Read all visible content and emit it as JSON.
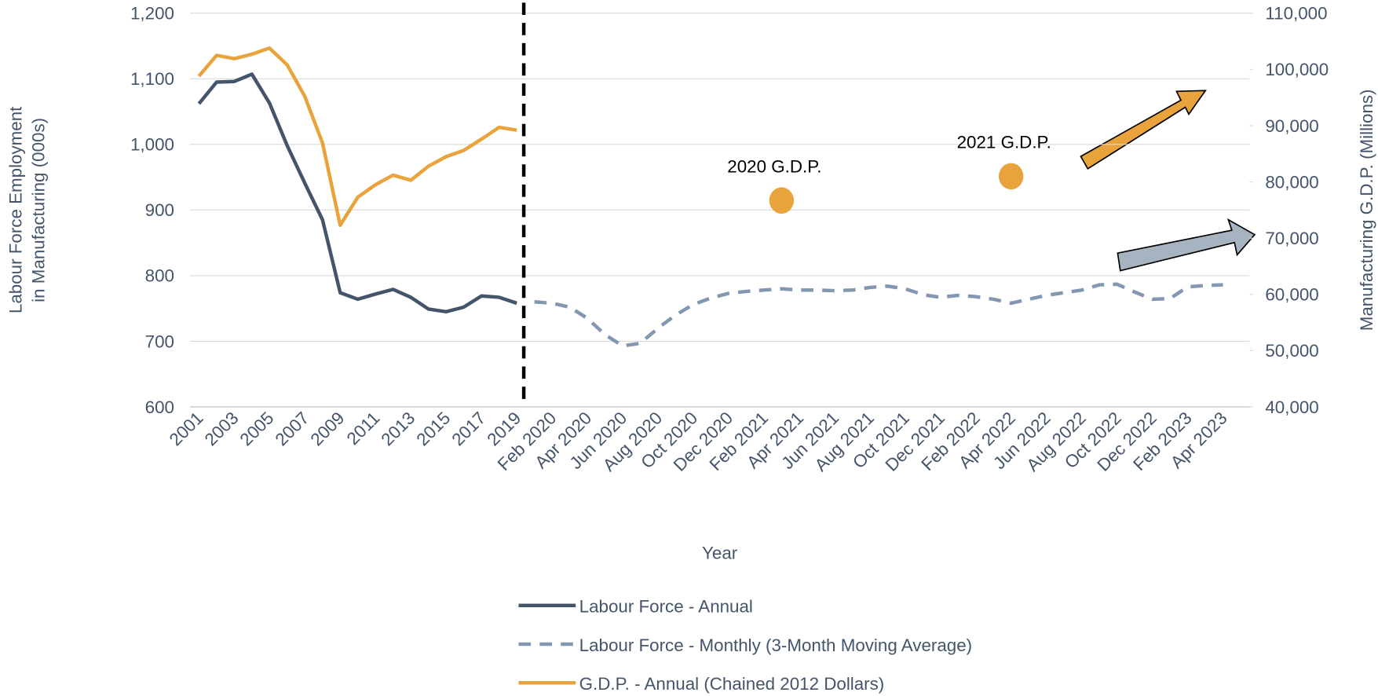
{
  "chart_data": {
    "type": "line",
    "x_label": "Year",
    "y_label": [
      "Labour Force Employment",
      "in Manufacturing (000s)"
    ],
    "y2_label": "Manufacturing G.D.P. (Millions)",
    "categories": [
      "2001",
      null,
      "2003",
      null,
      "2005",
      null,
      "2007",
      null,
      "2009",
      null,
      "2011",
      null,
      "2013",
      null,
      "2015",
      null,
      "2017",
      null,
      "2019",
      null,
      "Feb 2020",
      null,
      "Apr 2020",
      null,
      "Jun 2020",
      null,
      "Aug 2020",
      null,
      "Oct 2020",
      null,
      "Dec 2020",
      null,
      "Feb 2021",
      null,
      "Apr 2021",
      null,
      "Jun 2021",
      null,
      "Aug 2021",
      null,
      "Oct 2021",
      null,
      "Dec 2021",
      null,
      "Feb 2022",
      null,
      "Apr 2022",
      null,
      "Jun 2022",
      null,
      "Aug 2022",
      null,
      "Oct 2022",
      null,
      "Dec 2022",
      null,
      "Feb 2023",
      null,
      "Apr 2023"
    ],
    "ylim": [
      600,
      1200
    ],
    "yticks": [
      600,
      700,
      800,
      900,
      {
        "value": 1000,
        "label": "1,000"
      },
      {
        "value": 1100,
        "label": "1,100"
      },
      {
        "value": 1200,
        "label": "1,200"
      }
    ],
    "y2lim": [
      40000,
      110000
    ],
    "y2ticks": [
      {
        "value": 40000,
        "label": "40,000"
      },
      {
        "value": 50000,
        "label": "50,000"
      },
      {
        "value": 60000,
        "label": "60,000"
      },
      {
        "value": 70000,
        "label": "70,000"
      },
      {
        "value": 80000,
        "label": "80,000"
      },
      {
        "value": 90000,
        "label": "90,000"
      },
      {
        "value": 100000,
        "label": "100,000"
      },
      {
        "value": 110000,
        "label": "110,000"
      }
    ],
    "grid": true,
    "legend": "bottom",
    "series": [
      {
        "name": "Labour Force - Annual",
        "color": "#44546a",
        "style": "solid",
        "values": [
          1062,
          1095,
          1096,
          1107,
          1063,
          998,
          941,
          885,
          774,
          764,
          772,
          779,
          767,
          749,
          745,
          752,
          769,
          767,
          758,
          null,
          null,
          null,
          null,
          null,
          null,
          null,
          null,
          null,
          null,
          null,
          null,
          null,
          null,
          null,
          null,
          null,
          null,
          null,
          null,
          null,
          null,
          null,
          null,
          null,
          null,
          null,
          null,
          null,
          null,
          null,
          null,
          null,
          null,
          null,
          null,
          null,
          null,
          null,
          null
        ]
      },
      {
        "name": "Labour Force - Monthly (3-Month Moving Average)",
        "color": "#8497b0",
        "style": "dashed",
        "values": [
          null,
          null,
          null,
          null,
          null,
          null,
          null,
          null,
          null,
          null,
          null,
          null,
          null,
          null,
          null,
          null,
          null,
          null,
          null,
          760,
          758,
          752,
          735,
          710,
          693,
          697,
          720,
          740,
          756,
          766,
          773,
          776,
          778,
          780,
          778,
          778,
          777,
          778,
          782,
          784,
          780,
          771,
          767,
          770,
          768,
          764,
          758,
          764,
          770,
          774,
          778,
          786,
          787,
          775,
          764,
          765,
          783,
          785,
          786
        ]
      },
      {
        "name": "G.D.P. - Annual (Chained 2012 Dollars)",
        "color": "#e8a33d",
        "style": "solid",
        "axis": "y2",
        "values": [
          98800,
          102500,
          101900,
          102700,
          103800,
          100800,
          95200,
          86900,
          72300,
          77300,
          79500,
          81200,
          80300,
          82800,
          84500,
          85600,
          87600,
          89700,
          89200,
          null,
          null,
          null,
          null,
          null,
          null,
          null,
          null,
          null,
          null,
          null,
          null,
          null,
          null,
          null,
          null,
          null,
          null,
          null,
          null,
          null,
          null,
          null,
          null,
          null,
          null,
          null,
          null,
          null,
          null,
          null,
          null,
          null,
          null,
          null,
          null,
          null,
          null,
          null,
          null
        ]
      },
      {
        "color": "#e8a33d",
        "style": "dot",
        "axis": "y2",
        "values": [
          null,
          null,
          null,
          null,
          null,
          null,
          null,
          null,
          null,
          null,
          null,
          null,
          null,
          null,
          null,
          null,
          null,
          null,
          null,
          null,
          null,
          null,
          null,
          null,
          null,
          null,
          null,
          null,
          null,
          null,
          null,
          null,
          null,
          76700,
          null,
          null,
          null,
          null,
          null,
          null,
          null,
          null,
          null,
          null,
          null,
          null,
          81000,
          null,
          null,
          null,
          null,
          null,
          null,
          null,
          null,
          null,
          null,
          null,
          null
        ]
      }
    ],
    "annotations": [
      "2020 G.D.P.",
      "2021 G.D.P."
    ]
  }
}
